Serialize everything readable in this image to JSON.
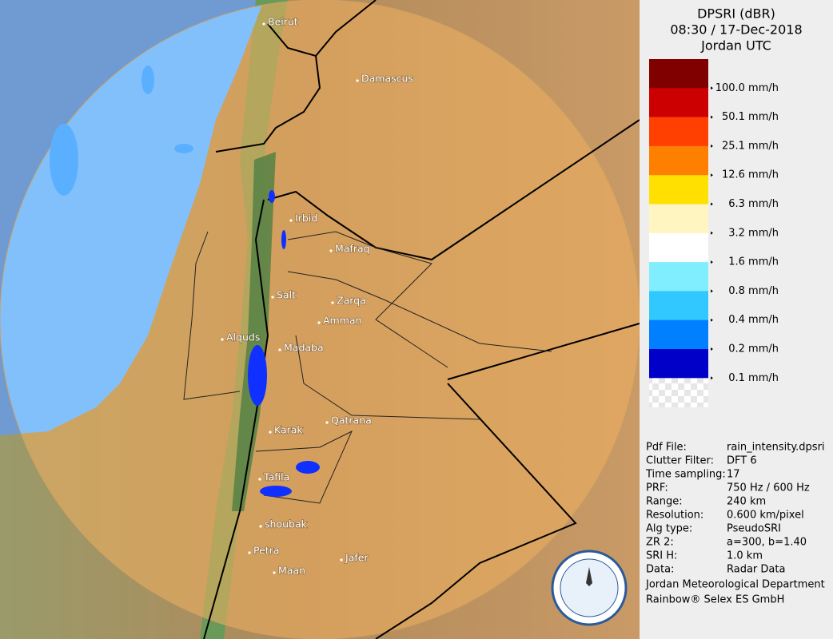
{
  "header": {
    "title": "DPSRI (dBR)",
    "datetime": "08:30 / 17-Dec-2018",
    "zone": "Jordan UTC"
  },
  "legend": {
    "colors": [
      "#800000",
      "#cc0000",
      "#ff4000",
      "#ff7f00",
      "#ffe000",
      "#fff5c0",
      "#ffffff",
      "#80eeff",
      "#30c8ff",
      "#0080ff",
      "#0000c8",
      "transparent"
    ],
    "labels": [
      "100.0 mm/h",
      "50.1 mm/h",
      "25.1 mm/h",
      "12.6 mm/h",
      "6.3 mm/h",
      "3.2 mm/h",
      "1.6 mm/h",
      "0.8 mm/h",
      "0.4 mm/h",
      "0.2 mm/h",
      "0.1 mm/h"
    ]
  },
  "cities": [
    "Beirut",
    "Damascus",
    "Irbid",
    "Mafraq",
    "Salt",
    "Zarqa",
    "Amman",
    "Alquds",
    "Madaba",
    "Qatrana",
    "Karak",
    "Tafila",
    "shoubak",
    "Petra",
    "Jafer",
    "Maan"
  ],
  "info": [
    [
      "Pdf File:",
      "rain_intensity.dpsri"
    ],
    [
      "Clutter Filter:",
      "DFT 6"
    ],
    [
      "Time sampling:",
      "17"
    ],
    [
      "PRF:",
      "750 Hz / 600 Hz"
    ],
    [
      "Range:",
      "240 km"
    ],
    [
      "Resolution:",
      "0.600 km/pixel"
    ],
    [
      "Alg type:",
      "PseudoSRI"
    ],
    [
      "ZR 2:",
      "a=300, b=1.40"
    ],
    [
      "SRI H:",
      "1.0 km"
    ],
    [
      "Data:",
      "Radar Data"
    ]
  ],
  "footer": [
    "Jordan Meteorological Department",
    "Rainbow® Selex ES GmbH"
  ]
}
